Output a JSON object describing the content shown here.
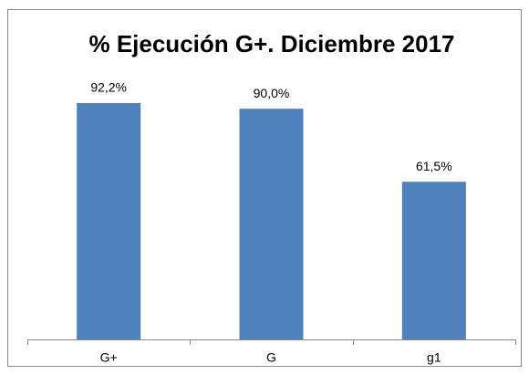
{
  "chart_data": {
    "type": "bar",
    "title": "% Ejecución G+. Diciembre 2017",
    "categories": [
      "G+",
      "G",
      "g1"
    ],
    "values": [
      92.2,
      90.0,
      61.5
    ],
    "value_labels": [
      "92,2%",
      "90,0%",
      "61,5%"
    ],
    "color": "#4f81bd"
  }
}
